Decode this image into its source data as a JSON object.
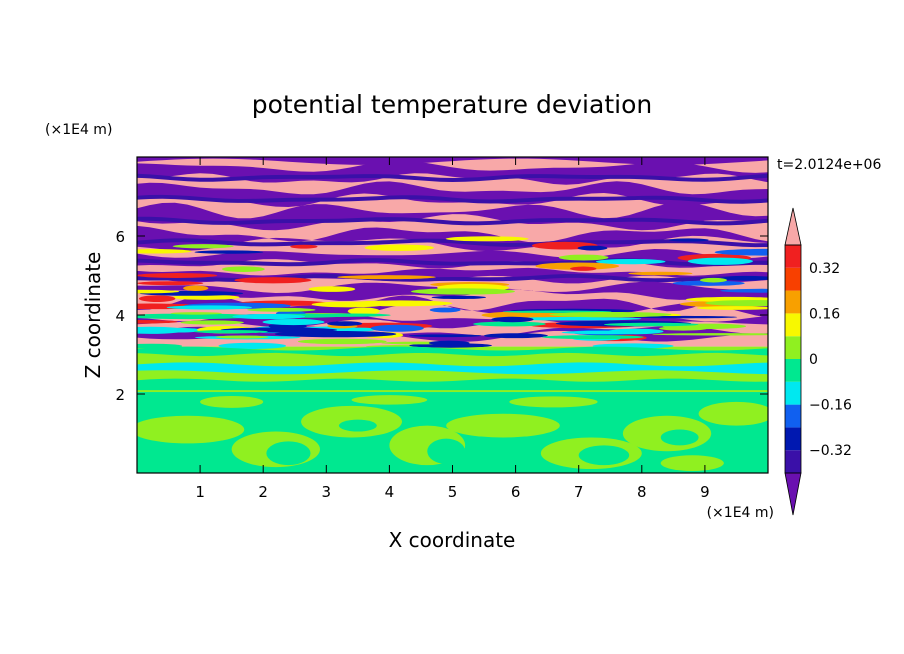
{
  "chart_data": {
    "type": "heatmap",
    "title": "potential temperature deviation",
    "xlabel": "X coordinate",
    "ylabel": "Z coordinate",
    "x_unit": "(×1E4 m)",
    "y_unit": "(×1E4 m)",
    "time_label": "t=2.0124e+06",
    "xlim": [
      0,
      10
    ],
    "ylim": [
      0,
      8
    ],
    "x_ticks": [
      1,
      2,
      3,
      4,
      5,
      6,
      7,
      8,
      9
    ],
    "y_ticks": [
      2,
      4,
      6
    ],
    "colorbar": {
      "levels": [
        -0.4,
        -0.32,
        -0.24,
        -0.16,
        -0.08,
        0,
        0.08,
        0.16,
        0.24,
        0.32,
        0.4
      ],
      "tick_values": [
        0.32,
        0.16,
        0,
        -0.16,
        -0.32
      ],
      "tick_labels": [
        "0.32",
        "0.16",
        "0",
        "−0.16",
        "−0.32"
      ],
      "colors": [
        "#6a10b0",
        "#3a10a8",
        "#0018b0",
        "#1060f0",
        "#00e8f0",
        "#00e890",
        "#90f020",
        "#f8f800",
        "#f8a000",
        "#f84000",
        "#f02020",
        "#f8a8a8"
      ],
      "extend": "both"
    }
  }
}
